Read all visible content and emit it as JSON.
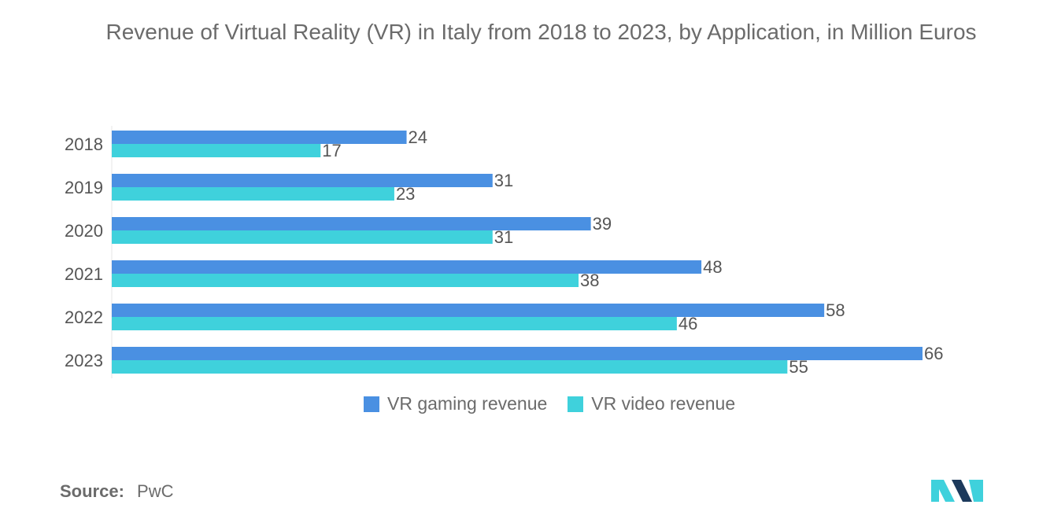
{
  "chart_data": {
    "type": "bar",
    "orientation": "horizontal",
    "title": "Revenue of Virtual Reality (VR) in Italy from 2018 to 2023, by Application, in Million Euros",
    "categories": [
      "2018",
      "2019",
      "2020",
      "2021",
      "2022",
      "2023"
    ],
    "series": [
      {
        "name": "VR gaming revenue",
        "color": "#4a90e2",
        "values": [
          24,
          31,
          39,
          48,
          58,
          66
        ]
      },
      {
        "name": "VR video revenue",
        "color": "#3fd1dc",
        "values": [
          17,
          23,
          31,
          38,
          46,
          55
        ]
      }
    ],
    "xlim": [
      0,
      66
    ],
    "xlabel": "",
    "ylabel": "",
    "grid": false,
    "legend_position": "bottom"
  },
  "source": {
    "label": "Source:",
    "value": "PwC"
  },
  "logo": {
    "icon": "mordor-intelligence-logo-icon",
    "colors": [
      "#1d3a5c",
      "#3fd1dc"
    ]
  }
}
